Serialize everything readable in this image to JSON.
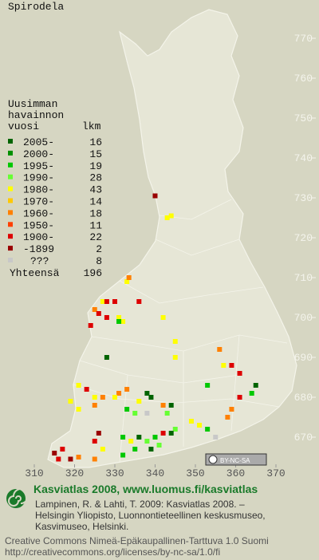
{
  "map": {
    "title": "Spirodela",
    "xticks": [
      310,
      320,
      330,
      340,
      350,
      360,
      370
    ],
    "yticks": [
      670,
      680,
      690,
      700,
      710,
      720,
      730,
      740,
      750,
      760,
      770
    ],
    "legend": {
      "heading": [
        "Uusimman",
        "havainnon",
        "vuosi"
      ],
      "count_heading": "lkm",
      "entries": [
        {
          "label": "2005-",
          "count": 16,
          "color": "#006400"
        },
        {
          "label": "2000-",
          "count": 15,
          "color": "#009000"
        },
        {
          "label": "1995-",
          "count": 19,
          "color": "#00c800"
        },
        {
          "label": "1990-",
          "count": 28,
          "color": "#66ff33"
        },
        {
          "label": "1980-",
          "count": 43,
          "color": "#ffff00"
        },
        {
          "label": "1970-",
          "count": 14,
          "color": "#ffc800"
        },
        {
          "label": "1960-",
          "count": 18,
          "color": "#ff8000"
        },
        {
          "label": "1950-",
          "count": 11,
          "color": "#ff4000"
        },
        {
          "label": "1900-",
          "count": 22,
          "color": "#dd0000"
        },
        {
          "label": "-1899",
          "count": 2,
          "color": "#990000"
        },
        {
          "label": "???",
          "count": 8,
          "color": "#c8c8c8"
        }
      ],
      "total_label": "Yhteensä",
      "total": 196
    },
    "squares": [
      {
        "x": 340,
        "y": 730.5,
        "period": 9
      },
      {
        "x": 343,
        "y": 725,
        "period": 4
      },
      {
        "x": 344,
        "y": 725.5,
        "period": 4
      },
      {
        "x": 333,
        "y": 709,
        "period": 4
      },
      {
        "x": 333.5,
        "y": 710,
        "period": 6
      },
      {
        "x": 327,
        "y": 704,
        "period": 4
      },
      {
        "x": 328,
        "y": 704,
        "period": 8
      },
      {
        "x": 330,
        "y": 704,
        "period": 8
      },
      {
        "x": 336,
        "y": 704,
        "period": 8
      },
      {
        "x": 325,
        "y": 702,
        "period": 6
      },
      {
        "x": 326,
        "y": 701,
        "period": 8
      },
      {
        "x": 328,
        "y": 700,
        "period": 8
      },
      {
        "x": 324,
        "y": 698,
        "period": 8
      },
      {
        "x": 342,
        "y": 700,
        "period": 4
      },
      {
        "x": 331,
        "y": 700,
        "period": 4
      },
      {
        "x": 332,
        "y": 699,
        "period": 4
      },
      {
        "x": 331,
        "y": 699,
        "period": 2
      },
      {
        "x": 345,
        "y": 694,
        "period": 4
      },
      {
        "x": 356,
        "y": 692,
        "period": 6
      },
      {
        "x": 357,
        "y": 688,
        "period": 4
      },
      {
        "x": 359,
        "y": 688,
        "period": 8
      },
      {
        "x": 361,
        "y": 686,
        "period": 8
      },
      {
        "x": 328,
        "y": 690,
        "period": 0
      },
      {
        "x": 345,
        "y": 690,
        "period": 4
      },
      {
        "x": 353,
        "y": 683,
        "period": 2
      },
      {
        "x": 365,
        "y": 683,
        "period": 0
      },
      {
        "x": 364,
        "y": 681,
        "period": 2
      },
      {
        "x": 361,
        "y": 680,
        "period": 8
      },
      {
        "x": 338,
        "y": 681,
        "period": 0
      },
      {
        "x": 339,
        "y": 680,
        "period": 0
      },
      {
        "x": 336,
        "y": 679,
        "period": 4
      },
      {
        "x": 333,
        "y": 682,
        "period": 6
      },
      {
        "x": 331,
        "y": 681,
        "period": 6
      },
      {
        "x": 330,
        "y": 680,
        "period": 4
      },
      {
        "x": 321,
        "y": 683,
        "period": 4
      },
      {
        "x": 323,
        "y": 682,
        "period": 8
      },
      {
        "x": 325,
        "y": 680,
        "period": 4
      },
      {
        "x": 327,
        "y": 680,
        "period": 6
      },
      {
        "x": 319,
        "y": 679,
        "period": 4
      },
      {
        "x": 325,
        "y": 678,
        "period": 6
      },
      {
        "x": 321,
        "y": 677,
        "period": 4
      },
      {
        "x": 333,
        "y": 677,
        "period": 2
      },
      {
        "x": 335,
        "y": 676,
        "period": 3
      },
      {
        "x": 338,
        "y": 676,
        "period": 10
      },
      {
        "x": 343,
        "y": 676,
        "period": 3
      },
      {
        "x": 342,
        "y": 678,
        "period": 6
      },
      {
        "x": 344,
        "y": 678,
        "period": 0
      },
      {
        "x": 349,
        "y": 674,
        "period": 4
      },
      {
        "x": 351,
        "y": 673,
        "period": 4
      },
      {
        "x": 353,
        "y": 672,
        "period": 2
      },
      {
        "x": 355,
        "y": 670,
        "period": 10
      },
      {
        "x": 358,
        "y": 675,
        "period": 6
      },
      {
        "x": 359,
        "y": 677,
        "period": 6
      },
      {
        "x": 345,
        "y": 672,
        "period": 3
      },
      {
        "x": 344,
        "y": 671,
        "period": 0
      },
      {
        "x": 332,
        "y": 670,
        "period": 2
      },
      {
        "x": 334,
        "y": 669,
        "period": 4
      },
      {
        "x": 336,
        "y": 670,
        "period": 0
      },
      {
        "x": 338,
        "y": 669,
        "period": 3
      },
      {
        "x": 340,
        "y": 670,
        "period": 2
      },
      {
        "x": 341,
        "y": 668,
        "period": 3
      },
      {
        "x": 342,
        "y": 671,
        "period": 8
      },
      {
        "x": 335,
        "y": 667,
        "period": 2
      },
      {
        "x": 339,
        "y": 667,
        "period": 0
      },
      {
        "x": 326,
        "y": 671,
        "period": 9
      },
      {
        "x": 325,
        "y": 669,
        "period": 8
      },
      {
        "x": 317,
        "y": 667,
        "period": 8
      },
      {
        "x": 315,
        "y": 666,
        "period": 9
      },
      {
        "x": 316,
        "y": 664.5,
        "period": 8
      },
      {
        "x": 319,
        "y": 664.5,
        "period": 9
      },
      {
        "x": 321,
        "y": 665,
        "period": 6
      },
      {
        "x": 325,
        "y": 664.5,
        "period": 6
      },
      {
        "x": 327,
        "y": 667,
        "period": 4
      },
      {
        "x": 332,
        "y": 665.5,
        "period": 2
      }
    ],
    "badge": "BY-NC-SA",
    "footer": {
      "headline": "Kasviatlas 2008, www.luomus.fi/kasviatlas",
      "citation": [
        "Lampinen, R. & Lahti, T. 2009: Kasviatlas 2008. –",
        "Helsingin Yliopisto, Luonnontieteellinen keskusmuseo,",
        "Kasvimuseo, Helsinki."
      ],
      "license": [
        "Creative Commons Nimeä-Epäkaupallinen-Tarttuva 1.0 Suomi",
        "http://creativecommons.org/licenses/by-nc-sa/1.0/fi"
      ]
    }
  }
}
